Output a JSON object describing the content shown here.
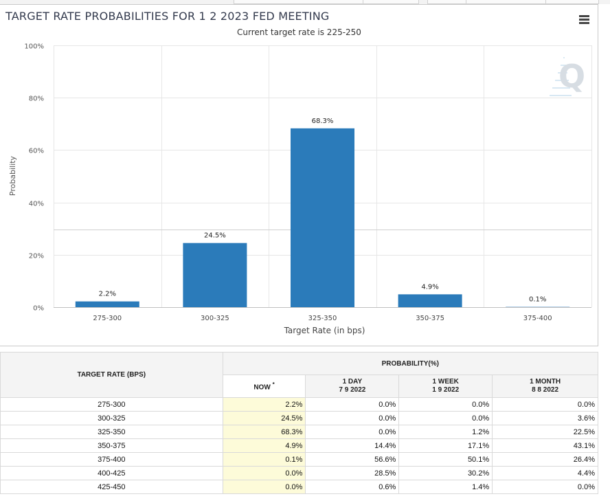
{
  "chart_data": {
    "type": "bar",
    "title": "TARGET RATE PROBABILITIES FOR 1 2 2023 FED MEETING",
    "subtitle": "Current target rate is 225-250",
    "xlabel": "Target Rate (in bps)",
    "ylabel": "Probability",
    "categories": [
      "275-300",
      "300-325",
      "325-350",
      "350-375",
      "375-400"
    ],
    "values": [
      2.2,
      24.5,
      68.3,
      4.9,
      0.1
    ],
    "data_labels": [
      "2.2%",
      "24.5%",
      "68.3%",
      "4.9%",
      "0.1%"
    ],
    "ylim": [
      0,
      100
    ],
    "yticks": [
      0,
      20,
      40,
      60,
      80,
      100
    ],
    "ytick_labels": [
      "0%",
      "20%",
      "40%",
      "60%",
      "80%",
      "100%"
    ],
    "grid": true,
    "bar_color": "#2b7bba"
  },
  "watermark": "Q",
  "menu_icon": "hamburger-menu-icon",
  "table": {
    "col_rate_header": "TARGET RATE (BPS)",
    "prob_header": "PROBABILITY(%)",
    "now_header": "NOW",
    "now_marker": "*",
    "day_header": "1 DAY",
    "day_date": "7 9 2022",
    "week_header": "1 WEEK",
    "week_date": "1 9 2022",
    "month_header": "1 MONTH",
    "month_date": "8 8 2022",
    "rows": [
      {
        "rate": "275-300",
        "now": "2.2%",
        "day": "0.0%",
        "week": "0.0%",
        "month": "0.0%"
      },
      {
        "rate": "300-325",
        "now": "24.5%",
        "day": "0.0%",
        "week": "0.0%",
        "month": "3.6%"
      },
      {
        "rate": "325-350",
        "now": "68.3%",
        "day": "0.0%",
        "week": "1.2%",
        "month": "22.5%"
      },
      {
        "rate": "350-375",
        "now": "4.9%",
        "day": "14.4%",
        "week": "17.1%",
        "month": "43.1%"
      },
      {
        "rate": "375-400",
        "now": "0.1%",
        "day": "56.6%",
        "week": "50.1%",
        "month": "26.4%"
      },
      {
        "rate": "400-425",
        "now": "0.0%",
        "day": "28.5%",
        "week": "30.2%",
        "month": "4.4%"
      },
      {
        "rate": "425-450",
        "now": "0.0%",
        "day": "0.6%",
        "week": "1.4%",
        "month": "0.0%"
      }
    ]
  }
}
